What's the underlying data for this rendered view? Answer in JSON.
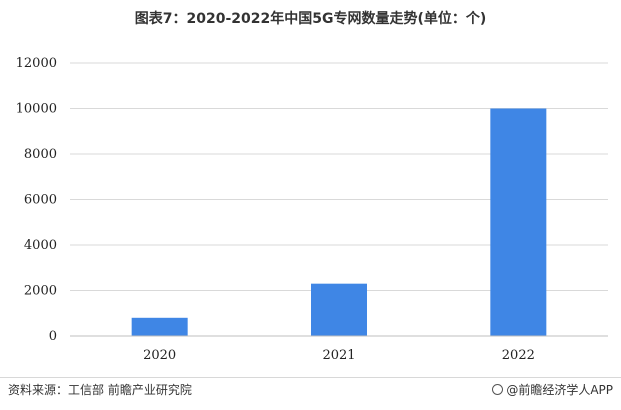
{
  "title": "图表7：2020-2022年中国5G专网数量走势(单位：个)",
  "chart_data": {
    "type": "bar",
    "categories": [
      "2020",
      "2021",
      "2022"
    ],
    "values": [
      800,
      2300,
      10000
    ],
    "ylim": [
      0,
      12000
    ],
    "yticks": [
      0,
      2000,
      4000,
      6000,
      8000,
      10000,
      12000
    ],
    "grid": true,
    "bar_color": "#3f86e5"
  },
  "footer": {
    "source": "资料来源：工信部 前瞻产业研究院",
    "brand": "@前瞻经济学人APP"
  }
}
